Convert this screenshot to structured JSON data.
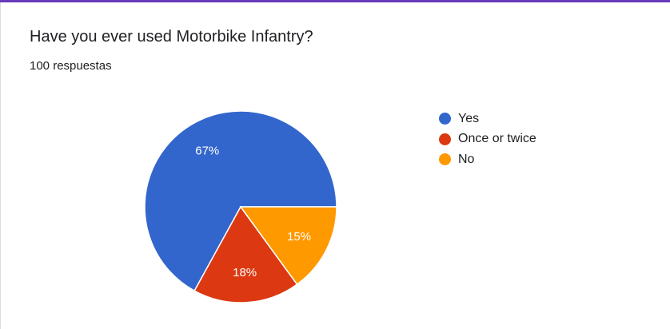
{
  "card": {
    "title": "Have you ever used Motorbike Infantry?",
    "response_count": "100 respuestas"
  },
  "chart_data": {
    "type": "pie",
    "title": "Have you ever used Motorbike Infantry?",
    "slices": [
      {
        "name": "Yes",
        "value": 67,
        "label": "67%",
        "color": "#3366cc"
      },
      {
        "name": "Once or twice",
        "value": 18,
        "label": "18%",
        "color": "#dc3912"
      },
      {
        "name": "No",
        "value": 15,
        "label": "15%",
        "color": "#ff9900"
      }
    ],
    "legend_position": "right"
  },
  "theme": {
    "accent": "#673ab7"
  }
}
